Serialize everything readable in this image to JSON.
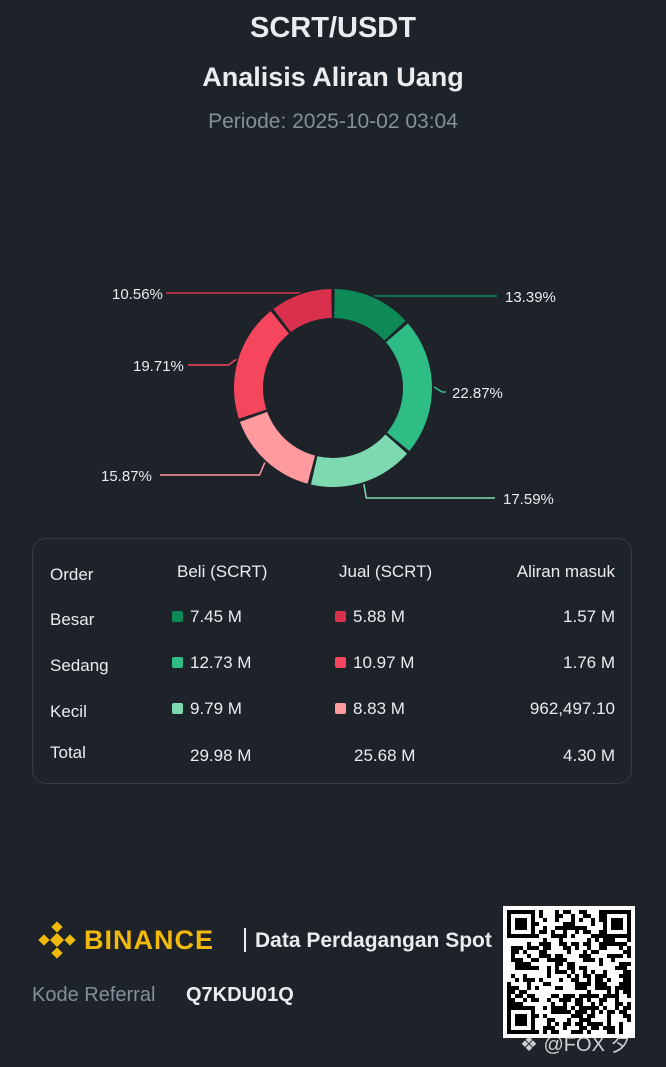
{
  "header": {
    "pair": "SCRT/USDT",
    "title": "Analisis Aliran Uang",
    "period": "Periode: 2025-10-02 03:04"
  },
  "colors": {
    "buy_large": "#0e8a57",
    "buy_medium": "#2ebd85",
    "buy_small": "#7dd9b0",
    "sell_large": "#d9304e",
    "sell_medium": "#f6465d",
    "sell_small": "#ff9a9f",
    "brand": "#f0b90b"
  },
  "chart_data": {
    "type": "pie",
    "title": "",
    "slices": [
      {
        "name": "Beli Besar",
        "value": 13.39,
        "label": "13.39%",
        "color": "#0e8a57"
      },
      {
        "name": "Beli Sedang",
        "value": 22.87,
        "label": "22.87%",
        "color": "#2ebd85"
      },
      {
        "name": "Beli Kecil",
        "value": 17.59,
        "label": "17.59%",
        "color": "#7dd9b0"
      },
      {
        "name": "Jual Kecil",
        "value": 15.87,
        "label": "15.87%",
        "color": "#ff9a9f"
      },
      {
        "name": "Jual Sedang",
        "value": 19.71,
        "label": "19.71%",
        "color": "#f6465d"
      },
      {
        "name": "Jual Besar",
        "value": 10.56,
        "label": "10.56%",
        "color": "#d9304e"
      }
    ]
  },
  "table": {
    "headers": [
      "Order",
      "Beli (SCRT)",
      "Jual (SCRT)",
      "Aliran masuk"
    ],
    "rows": [
      {
        "label": "Besar",
        "buy": "7.45 M",
        "sell": "5.88 M",
        "inflow": "1.57 M"
      },
      {
        "label": "Sedang",
        "buy": "12.73 M",
        "sell": "10.97 M",
        "inflow": "1.76 M"
      },
      {
        "label": "Kecil",
        "buy": "9.79 M",
        "sell": "8.83 M",
        "inflow": "962,497.10"
      },
      {
        "label": "Total",
        "buy": "29.98 M",
        "sell": "25.68 M",
        "inflow": "4.30 M"
      }
    ]
  },
  "footer": {
    "brand": "BINANCE",
    "tagline": "Data Perdagangan Spot",
    "referral_label": "Kode Referral",
    "referral_code": "Q7KDU01Q",
    "watermark": "@FOX 夕"
  }
}
